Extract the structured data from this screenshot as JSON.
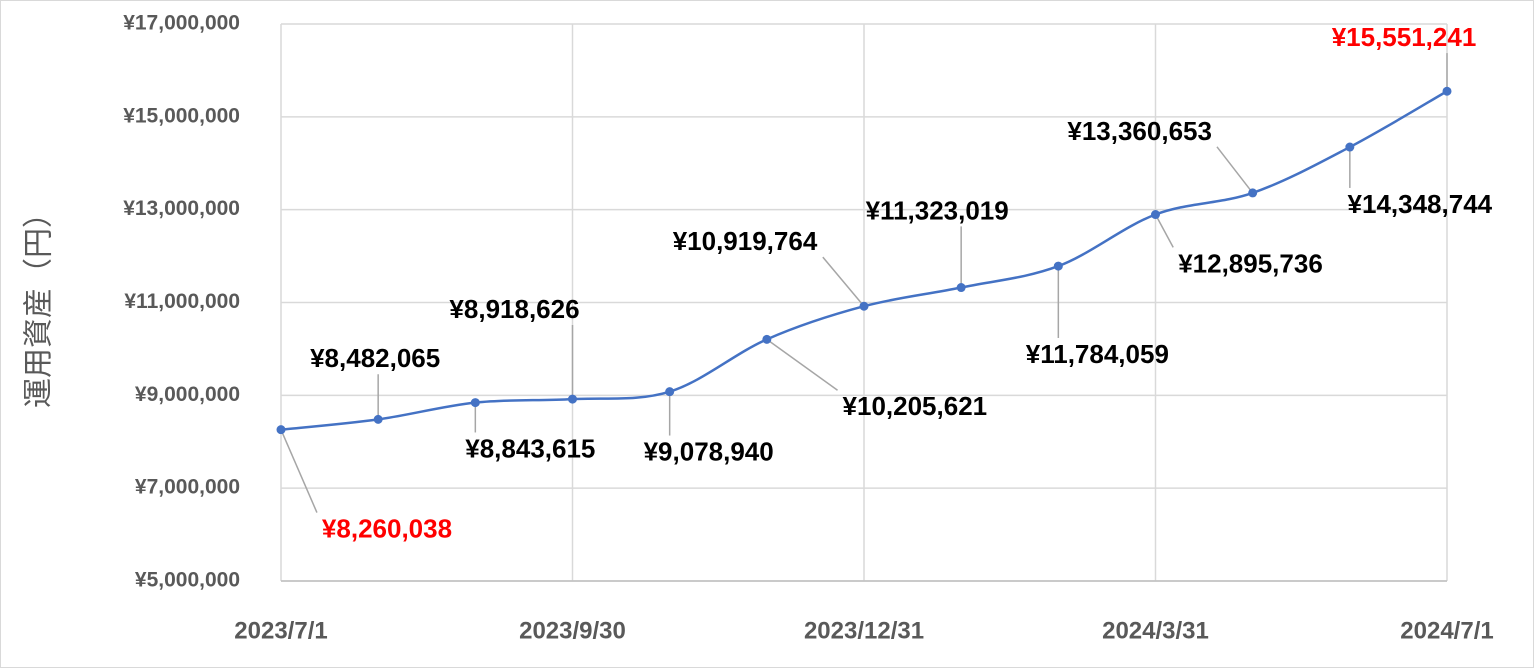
{
  "chart_data": {
    "type": "line",
    "y_axis_label": "運用資産（円）",
    "categories": [
      "2023/7/1",
      null,
      null,
      "2023/9/30",
      null,
      null,
      "2023/12/31",
      null,
      null,
      "2024/3/31",
      null,
      null,
      "2024/7/1"
    ],
    "series": [
      {
        "color": "#4472c4",
        "values": [
          8260038,
          8482065,
          8843615,
          8918626,
          9078940,
          10205621,
          10919764,
          11323019,
          11784059,
          12895736,
          13360653,
          14348744,
          15551241
        ],
        "value_labels": [
          "¥8,260,038",
          "¥8,482,065",
          "¥8,843,615",
          "¥8,918,626",
          "¥9,078,940",
          "¥10,205,621",
          "¥10,919,764",
          "¥11,323,019",
          "¥11,784,059",
          "¥12,895,736",
          "¥13,360,653",
          "¥14,348,744",
          "¥15,551,241"
        ],
        "value_label_colors": [
          "#ff0000",
          "#000000",
          "#000000",
          "#000000",
          "#000000",
          "#000000",
          "#000000",
          "#000000",
          "#000000",
          "#000000",
          "#000000",
          "#000000",
          "#ff0000"
        ]
      }
    ],
    "ylim": [
      5000000,
      17000000
    ],
    "yticks": [
      {
        "value": 5000000,
        "label": "¥5,000,000"
      },
      {
        "value": 7000000,
        "label": "¥7,000,000"
      },
      {
        "value": 9000000,
        "label": "¥9,000,000"
      },
      {
        "value": 11000000,
        "label": "¥11,000,000"
      },
      {
        "value": 13000000,
        "label": "¥13,000,000"
      },
      {
        "value": 15000000,
        "label": "¥15,000,000"
      },
      {
        "value": 17000000,
        "label": "¥17,000,000"
      }
    ],
    "grid": true,
    "smooth": true
  }
}
